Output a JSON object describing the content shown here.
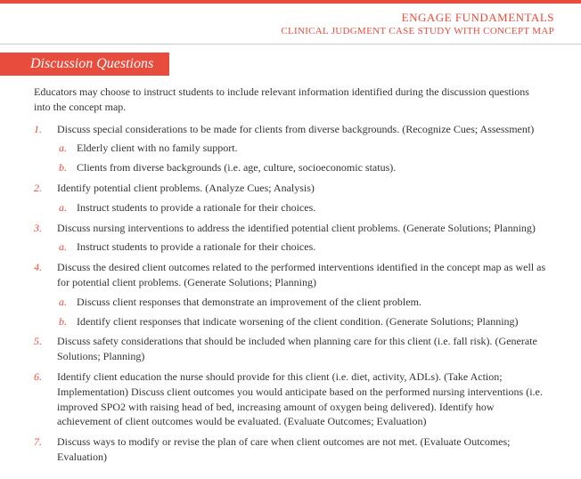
{
  "header": {
    "title": "ENGAGE FUNDAMENTALS",
    "subtitle": "CLINICAL JUDGMENT CASE STUDY WITH CONCEPT MAP"
  },
  "section_title": "Discussion Questions",
  "intro": "Educators may choose to instruct students to include relevant information identified during the discussion questions into the concept map.",
  "items": [
    {
      "num": "1.",
      "text": "Discuss special considerations to be made for clients from diverse backgrounds. (Recognize Cues; Assessment)",
      "sub": [
        {
          "letter": "a.",
          "text": "Elderly client with no family support."
        },
        {
          "letter": "b.",
          "text": "Clients from diverse backgrounds (i.e. age, culture, socioeconomic status)."
        }
      ]
    },
    {
      "num": "2.",
      "text": "Identify potential client problems. (Analyze Cues; Analysis)",
      "sub": [
        {
          "letter": "a.",
          "text": "Instruct students to provide a rationale for their choices."
        }
      ]
    },
    {
      "num": "3.",
      "text": "Discuss nursing interventions to address the identified potential client problems. (Generate Solutions; Planning)",
      "sub": [
        {
          "letter": "a.",
          "text": "Instruct students to provide a rationale for their choices."
        }
      ]
    },
    {
      "num": "4.",
      "text": "Discuss the desired client outcomes related to the performed interventions identified in the concept map as well as for potential client problems. (Generate Solutions; Planning)",
      "sub": [
        {
          "letter": "a.",
          "text": "Discuss client responses that demonstrate an improvement of the client problem."
        },
        {
          "letter": "b.",
          "text": "Identify client responses that indicate worsening of the client condition. (Generate Solutions; Planning)"
        }
      ]
    },
    {
      "num": "5.",
      "text": "Discuss safety considerations that should be included when planning care for this client (i.e. fall risk). (Generate Solutions; Planning)",
      "sub": []
    },
    {
      "num": "6.",
      "text": "Identify client education the nurse should provide for this client (i.e. diet, activity, ADLs). (Take Action; Implementation) Discuss client outcomes you would anticipate based on the performed nursing interventions (i.e. improved SPO2 with raising head of bed, increasing amount of oxygen being delivered). Identify how achievement of client outcomes would be evaluated. (Evaluate Outcomes; Evaluation)",
      "sub": []
    },
    {
      "num": "7.",
      "text": "Discuss ways to modify or revise the plan of care when client outcomes are not met. (Evaluate Outcomes; Evaluation)",
      "sub": []
    }
  ]
}
